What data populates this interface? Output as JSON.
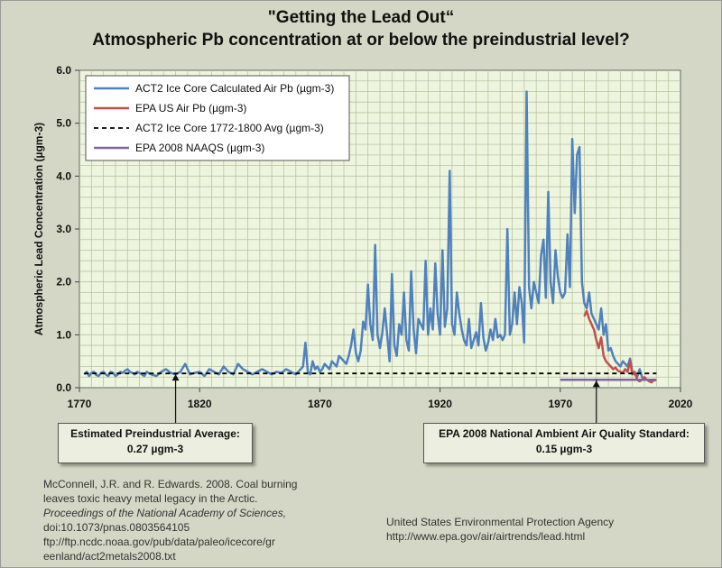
{
  "chart_data": {
    "type": "line",
    "title": "\"Getting the Lead Out“",
    "subtitle": "Atmospheric Pb concentration at or below the preindustrial level?",
    "xlabel": "",
    "ylabel": "Atmospheric Lead Concentration (µgm-3)",
    "xlim": [
      1770,
      2020
    ],
    "ylim": [
      0,
      6
    ],
    "x_ticks": [
      "1770",
      "1820",
      "1870",
      "1920",
      "1970",
      "2020"
    ],
    "y_ticks": [
      "0.0",
      "1.0",
      "2.0",
      "3.0",
      "4.0",
      "5.0",
      "6.0"
    ],
    "legend": [
      "ACT2 Ice Core Calculated Air Pb (µgm-3)",
      "EPA US Air Pb (µgm-3)",
      "ACT2 Ice Core 1772-1800 Avg (µgm-3)",
      "EPA 2008 NAAQS (µgm-3)"
    ],
    "legend_position": "top-left",
    "series": [
      {
        "name": "ACT2 Ice Core Calculated Air Pb (µgm-3)",
        "color": "#4f81bd",
        "x": [
          1772,
          1773,
          1774,
          1775,
          1776,
          1777,
          1778,
          1779,
          1780,
          1781,
          1782,
          1783,
          1784,
          1785,
          1786,
          1787,
          1788,
          1789,
          1790,
          1791,
          1792,
          1793,
          1794,
          1795,
          1796,
          1797,
          1798,
          1799,
          1800,
          1802,
          1804,
          1806,
          1808,
          1810,
          1812,
          1814,
          1816,
          1818,
          1820,
          1822,
          1824,
          1826,
          1828,
          1830,
          1832,
          1834,
          1836,
          1838,
          1840,
          1842,
          1844,
          1846,
          1848,
          1850,
          1852,
          1854,
          1856,
          1858,
          1860,
          1861,
          1862,
          1863,
          1864,
          1865,
          1866,
          1867,
          1868,
          1869,
          1870,
          1871,
          1872,
          1873,
          1874,
          1875,
          1876,
          1877,
          1878,
          1879,
          1880,
          1881,
          1882,
          1883,
          1884,
          1885,
          1886,
          1887,
          1888,
          1889,
          1890,
          1891,
          1892,
          1893,
          1894,
          1895,
          1896,
          1897,
          1898,
          1899,
          1900,
          1901,
          1902,
          1903,
          1904,
          1905,
          1906,
          1907,
          1908,
          1909,
          1910,
          1911,
          1912,
          1913,
          1914,
          1915,
          1916,
          1917,
          1918,
          1919,
          1920,
          1921,
          1922,
          1923,
          1924,
          1925,
          1926,
          1927,
          1928,
          1929,
          1930,
          1931,
          1932,
          1933,
          1934,
          1935,
          1936,
          1937,
          1938,
          1939,
          1940,
          1941,
          1942,
          1943,
          1944,
          1945,
          1946,
          1947,
          1948,
          1949,
          1950,
          1951,
          1952,
          1953,
          1954,
          1955,
          1956,
          1957,
          1958,
          1959,
          1960,
          1961,
          1962,
          1963,
          1964,
          1965,
          1966,
          1967,
          1968,
          1969,
          1970,
          1971,
          1972,
          1973,
          1974,
          1975,
          1976,
          1977,
          1978,
          1979,
          1980,
          1981,
          1982,
          1983,
          1984,
          1985,
          1986,
          1987,
          1988,
          1989,
          1990,
          1991,
          1992,
          1993,
          1994,
          1995,
          1996,
          1997,
          1998,
          1999,
          2000,
          2001,
          2002,
          2003,
          2004,
          2005
        ],
        "values": [
          0.25,
          0.3,
          0.22,
          0.28,
          0.3,
          0.24,
          0.22,
          0.28,
          0.3,
          0.25,
          0.22,
          0.3,
          0.28,
          0.22,
          0.25,
          0.3,
          0.28,
          0.32,
          0.35,
          0.3,
          0.28,
          0.25,
          0.3,
          0.28,
          0.25,
          0.22,
          0.3,
          0.27,
          0.25,
          0.22,
          0.3,
          0.35,
          0.28,
          0.25,
          0.3,
          0.45,
          0.25,
          0.28,
          0.3,
          0.22,
          0.35,
          0.3,
          0.25,
          0.4,
          0.3,
          0.25,
          0.45,
          0.35,
          0.3,
          0.25,
          0.3,
          0.35,
          0.3,
          0.25,
          0.3,
          0.28,
          0.35,
          0.3,
          0.25,
          0.3,
          0.35,
          0.4,
          0.85,
          0.3,
          0.25,
          0.5,
          0.35,
          0.4,
          0.3,
          0.35,
          0.45,
          0.4,
          0.35,
          0.5,
          0.45,
          0.4,
          0.6,
          0.55,
          0.5,
          0.45,
          0.6,
          0.8,
          1.1,
          0.65,
          0.5,
          0.7,
          1.25,
          1.1,
          1.95,
          1.2,
          0.9,
          2.7,
          1.0,
          0.75,
          1.05,
          1.5,
          1.0,
          0.5,
          2.15,
          0.8,
          0.6,
          1.2,
          1.0,
          1.8,
          0.9,
          0.7,
          2.2,
          1.1,
          0.65,
          1.3,
          1.2,
          1.1,
          2.4,
          1.0,
          1.5,
          1.1,
          2.35,
          1.4,
          1.0,
          2.6,
          1.15,
          1.5,
          4.1,
          1.2,
          1.0,
          1.8,
          1.4,
          1.1,
          0.9,
          0.8,
          1.3,
          0.75,
          0.9,
          1.05,
          0.8,
          1.6,
          0.95,
          0.7,
          0.85,
          1.1,
          0.9,
          1.3,
          0.95,
          1.0,
          0.9,
          1.0,
          3.0,
          1.0,
          1.2,
          1.8,
          1.2,
          1.9,
          1.6,
          0.85,
          5.6,
          1.9,
          1.5,
          2.0,
          1.8,
          1.6,
          2.5,
          2.8,
          1.7,
          3.7,
          2.0,
          1.6,
          2.6,
          2.1,
          1.8,
          1.7,
          1.8,
          2.9,
          1.9,
          4.7,
          3.3,
          4.4,
          4.55,
          2.0,
          1.6,
          1.5,
          1.8,
          1.4,
          1.3,
          1.2,
          1.1,
          1.5,
          1.0,
          1.2,
          0.7,
          0.75,
          0.6,
          0.5,
          0.45,
          0.4,
          0.5,
          0.45,
          0.4,
          0.55,
          0.3,
          0.25,
          0.2,
          0.35,
          0.2,
          0.15
        ]
      },
      {
        "name": "EPA US Air Pb (µgm-3)",
        "color": "#c0504d",
        "x": [
          1980,
          1981,
          1982,
          1983,
          1984,
          1985,
          1986,
          1987,
          1988,
          1989,
          1990,
          1991,
          1992,
          1993,
          1994,
          1995,
          1996,
          1997,
          1998,
          1999,
          2000,
          2001,
          2002,
          2003,
          2004,
          2005,
          2006,
          2007,
          2008,
          2009,
          2010
        ],
        "values": [
          1.35,
          1.45,
          1.3,
          1.2,
          1.1,
          0.9,
          0.75,
          0.95,
          0.6,
          0.5,
          0.45,
          0.4,
          0.35,
          0.38,
          0.32,
          0.3,
          0.28,
          0.35,
          0.3,
          0.5,
          0.25,
          0.3,
          0.15,
          0.12,
          0.15,
          0.2,
          0.15,
          0.12,
          0.1,
          0.15,
          0.14
        ]
      },
      {
        "name": "ACT2 Ice Core 1772-1800 Avg (µgm-3)",
        "color": "#000000",
        "x": [
          1772,
          2010
        ],
        "values": [
          0.27,
          0.27
        ]
      },
      {
        "name": "EPA 2008 NAAQS (µgm-3)",
        "color": "#8064a2",
        "x": [
          1970,
          2010
        ],
        "values": [
          0.15,
          0.15
        ]
      }
    ],
    "annotations": [
      {
        "text_line1": "Estimated Preindustrial Average:",
        "text_line2": "0.27 µgm-3",
        "x": 1810,
        "y": 0.27
      },
      {
        "text_line1": "EPA 2008 National Ambient Air Quality Standard:",
        "text_line2": "0.15 µgm-3",
        "x": 1985,
        "y": 0.15
      }
    ]
  },
  "citation": {
    "line1": "McConnell, J.R. and R. Edwards. 2008.  Coal burning",
    "line2": "leaves toxic heavy metal legacy in the Arctic.",
    "line3": "Proceedings of the National Academy of Sciences,",
    "line4": "doi:10.1073/pnas.0803564105",
    "line5": "ftp://ftp.ncdc.noaa.gov/pub/data/paleo/icecore/gr",
    "line6": "eenland/act2metals2008.txt"
  },
  "source": {
    "line1": "United States Environmental Protection Agency",
    "line2": "http://www.epa.gov/air/airtrends/lead.html"
  }
}
